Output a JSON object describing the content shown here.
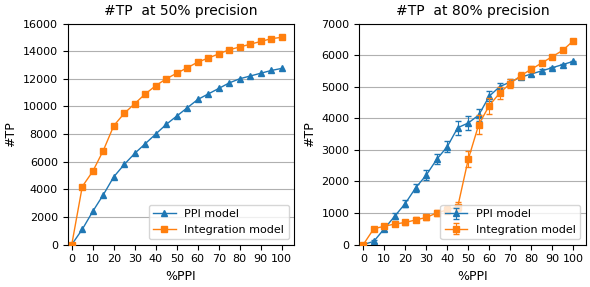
{
  "chart_data": [
    {
      "type": "line",
      "title": "#TP  at 50% precision",
      "xlabel": "%PPI",
      "ylabel": "#TP",
      "x": [
        0,
        5,
        10,
        15,
        20,
        25,
        30,
        35,
        40,
        45,
        50,
        55,
        60,
        65,
        70,
        75,
        80,
        85,
        90,
        95,
        100
      ],
      "series": [
        {
          "name": "PPI model",
          "marker": "triangle",
          "values": [
            0,
            1100,
            2400,
            3600,
            4900,
            5800,
            6600,
            7300,
            8000,
            8700,
            9300,
            9900,
            10500,
            10900,
            11300,
            11700,
            12000,
            12200,
            12400,
            12600,
            12750
          ]
        },
        {
          "name": "Integration model",
          "marker": "square",
          "values": [
            0,
            4200,
            5300,
            6800,
            8600,
            9500,
            10200,
            10900,
            11500,
            12000,
            12400,
            12800,
            13200,
            13500,
            13800,
            14100,
            14300,
            14500,
            14700,
            14900,
            15000
          ]
        }
      ],
      "xlim": [
        -2,
        106
      ],
      "ylim": [
        0,
        16000
      ],
      "xticks": [
        0,
        10,
        20,
        30,
        40,
        50,
        60,
        70,
        80,
        90,
        100
      ],
      "yticks": [
        0,
        2000,
        4000,
        6000,
        8000,
        10000,
        12000,
        14000,
        16000
      ],
      "grid": true,
      "legend": "lower right"
    },
    {
      "type": "line",
      "title": "#TP  at 80% precision",
      "xlabel": "%PPI",
      "ylabel": "#TP",
      "x": [
        0,
        5,
        10,
        15,
        20,
        25,
        30,
        35,
        40,
        45,
        50,
        55,
        60,
        65,
        70,
        75,
        80,
        85,
        90,
        95,
        100
      ],
      "series": [
        {
          "name": "PPI model",
          "marker": "triangle",
          "values": [
            0,
            100,
            500,
            900,
            1300,
            1800,
            2200,
            2700,
            3100,
            3700,
            3850,
            4100,
            4700,
            5000,
            5150,
            5300,
            5400,
            5500,
            5600,
            5700,
            5800
          ],
          "errors": [
            0,
            40,
            70,
            90,
            110,
            130,
            150,
            160,
            180,
            220,
            210,
            200,
            160,
            120,
            90,
            70,
            55,
            45,
            35,
            25,
            15
          ]
        },
        {
          "name": "Integration model",
          "marker": "square",
          "values": [
            0,
            500,
            580,
            650,
            700,
            780,
            860,
            1000,
            1100,
            1200,
            2700,
            3800,
            4400,
            4800,
            5100,
            5350,
            5550,
            5750,
            5950,
            6150,
            6450
          ],
          "errors": [
            0,
            40,
            50,
            60,
            70,
            80,
            90,
            100,
            120,
            150,
            250,
            300,
            250,
            200,
            150,
            120,
            90,
            70,
            55,
            45,
            30
          ]
        }
      ],
      "xlim": [
        -2,
        106
      ],
      "ylim": [
        0,
        7000
      ],
      "xticks": [
        0,
        10,
        20,
        30,
        40,
        50,
        60,
        70,
        80,
        90,
        100
      ],
      "yticks": [
        0,
        1000,
        2000,
        3000,
        4000,
        5000,
        6000,
        7000
      ],
      "grid": true,
      "legend": "lower right"
    }
  ]
}
